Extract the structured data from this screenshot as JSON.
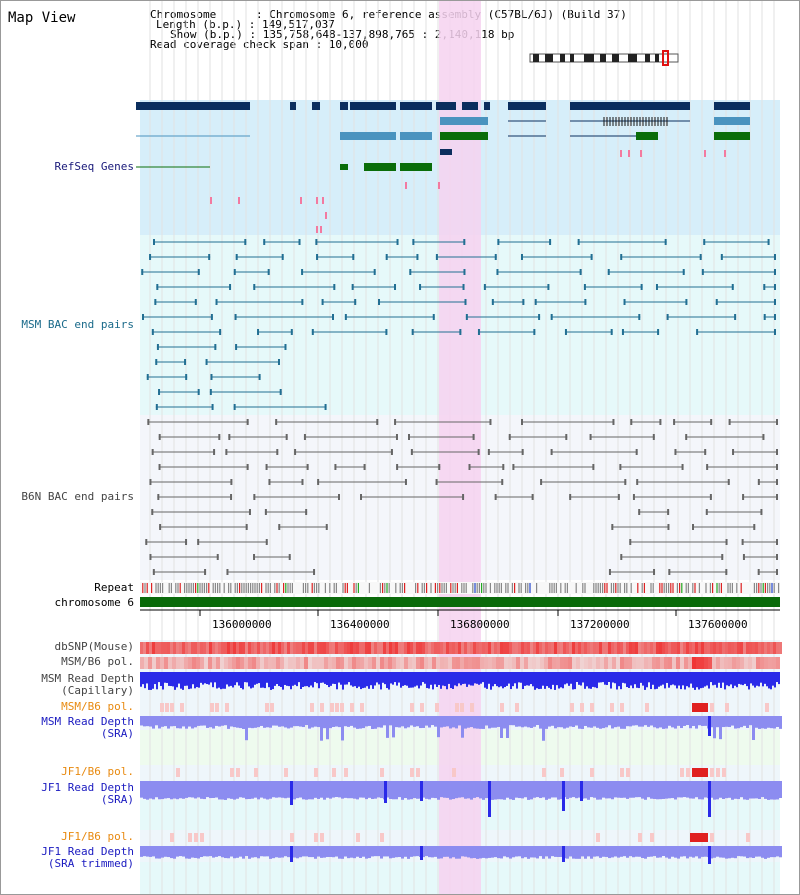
{
  "title": "Map View",
  "info": {
    "chromosome": "Chromosome      : Chromosome 6, reference assembly (C57BL/6J) (Build 37)",
    "length": "Length (b.p.) : 149,517,037",
    "show": "Show (b.p.) : 135,758,648-137,898,765 : 2,140,118 bp",
    "coverage": "Read coverage check span : 10,000"
  },
  "tracks": {
    "refseq": "RefSeq Genes",
    "msm_bac": "MSM BAC end pairs",
    "b6n_bac": "B6N BAC end pairs",
    "repeat": "Repeat",
    "chromosome": "chromosome 6",
    "dbsnp": "dbSNP(Mouse)",
    "msm_b6_pol": "MSM/B6 pol.",
    "msm_depth_cap_1": "MSM Read Depth",
    "msm_depth_cap_2": "(Capillary)",
    "msm_b6_pol_2": "MSM/B6 pol.",
    "msm_depth_sra_1": "MSM Read Depth",
    "msm_depth_sra_2": "(SRA)",
    "jf1_b6_pol": "JF1/B6 pol.",
    "jf1_depth_sra_1": "JF1 Read Depth",
    "jf1_depth_sra_2": "(SRA)",
    "jf1_b6_pol_2": "JF1/B6 pol.",
    "jf1_depth_trim_1": "JF1 Read Depth",
    "jf1_depth_trim_2": "(SRA trimmed)"
  },
  "axis_ticks": [
    "136000000",
    "136400000",
    "136800000",
    "137200000",
    "137600000"
  ],
  "colors": {
    "refseq_bg": "#d6eefa",
    "msm_bg": "#e6f9fa",
    "b6n_bg": "#f4f6fb",
    "highlight": "#f6d2f0",
    "gene_dark": "#0b2e5e",
    "gene_mid": "#4a93bf",
    "gene_green": "#0a6d0a",
    "bac_msm": "#226f93",
    "bac_b6n": "#666666",
    "chrom_green": "#0a6a0a",
    "snp_red": "#ee4444",
    "depth_blue": "#2a2ae8",
    "depth_light": "#8c8cf0",
    "label_navy": "#1a1a7a",
    "label_teal": "#1a6a8a",
    "label_gray": "#444444",
    "label_orange": "#e88a10",
    "label_blue": "#1a1ac0"
  }
}
